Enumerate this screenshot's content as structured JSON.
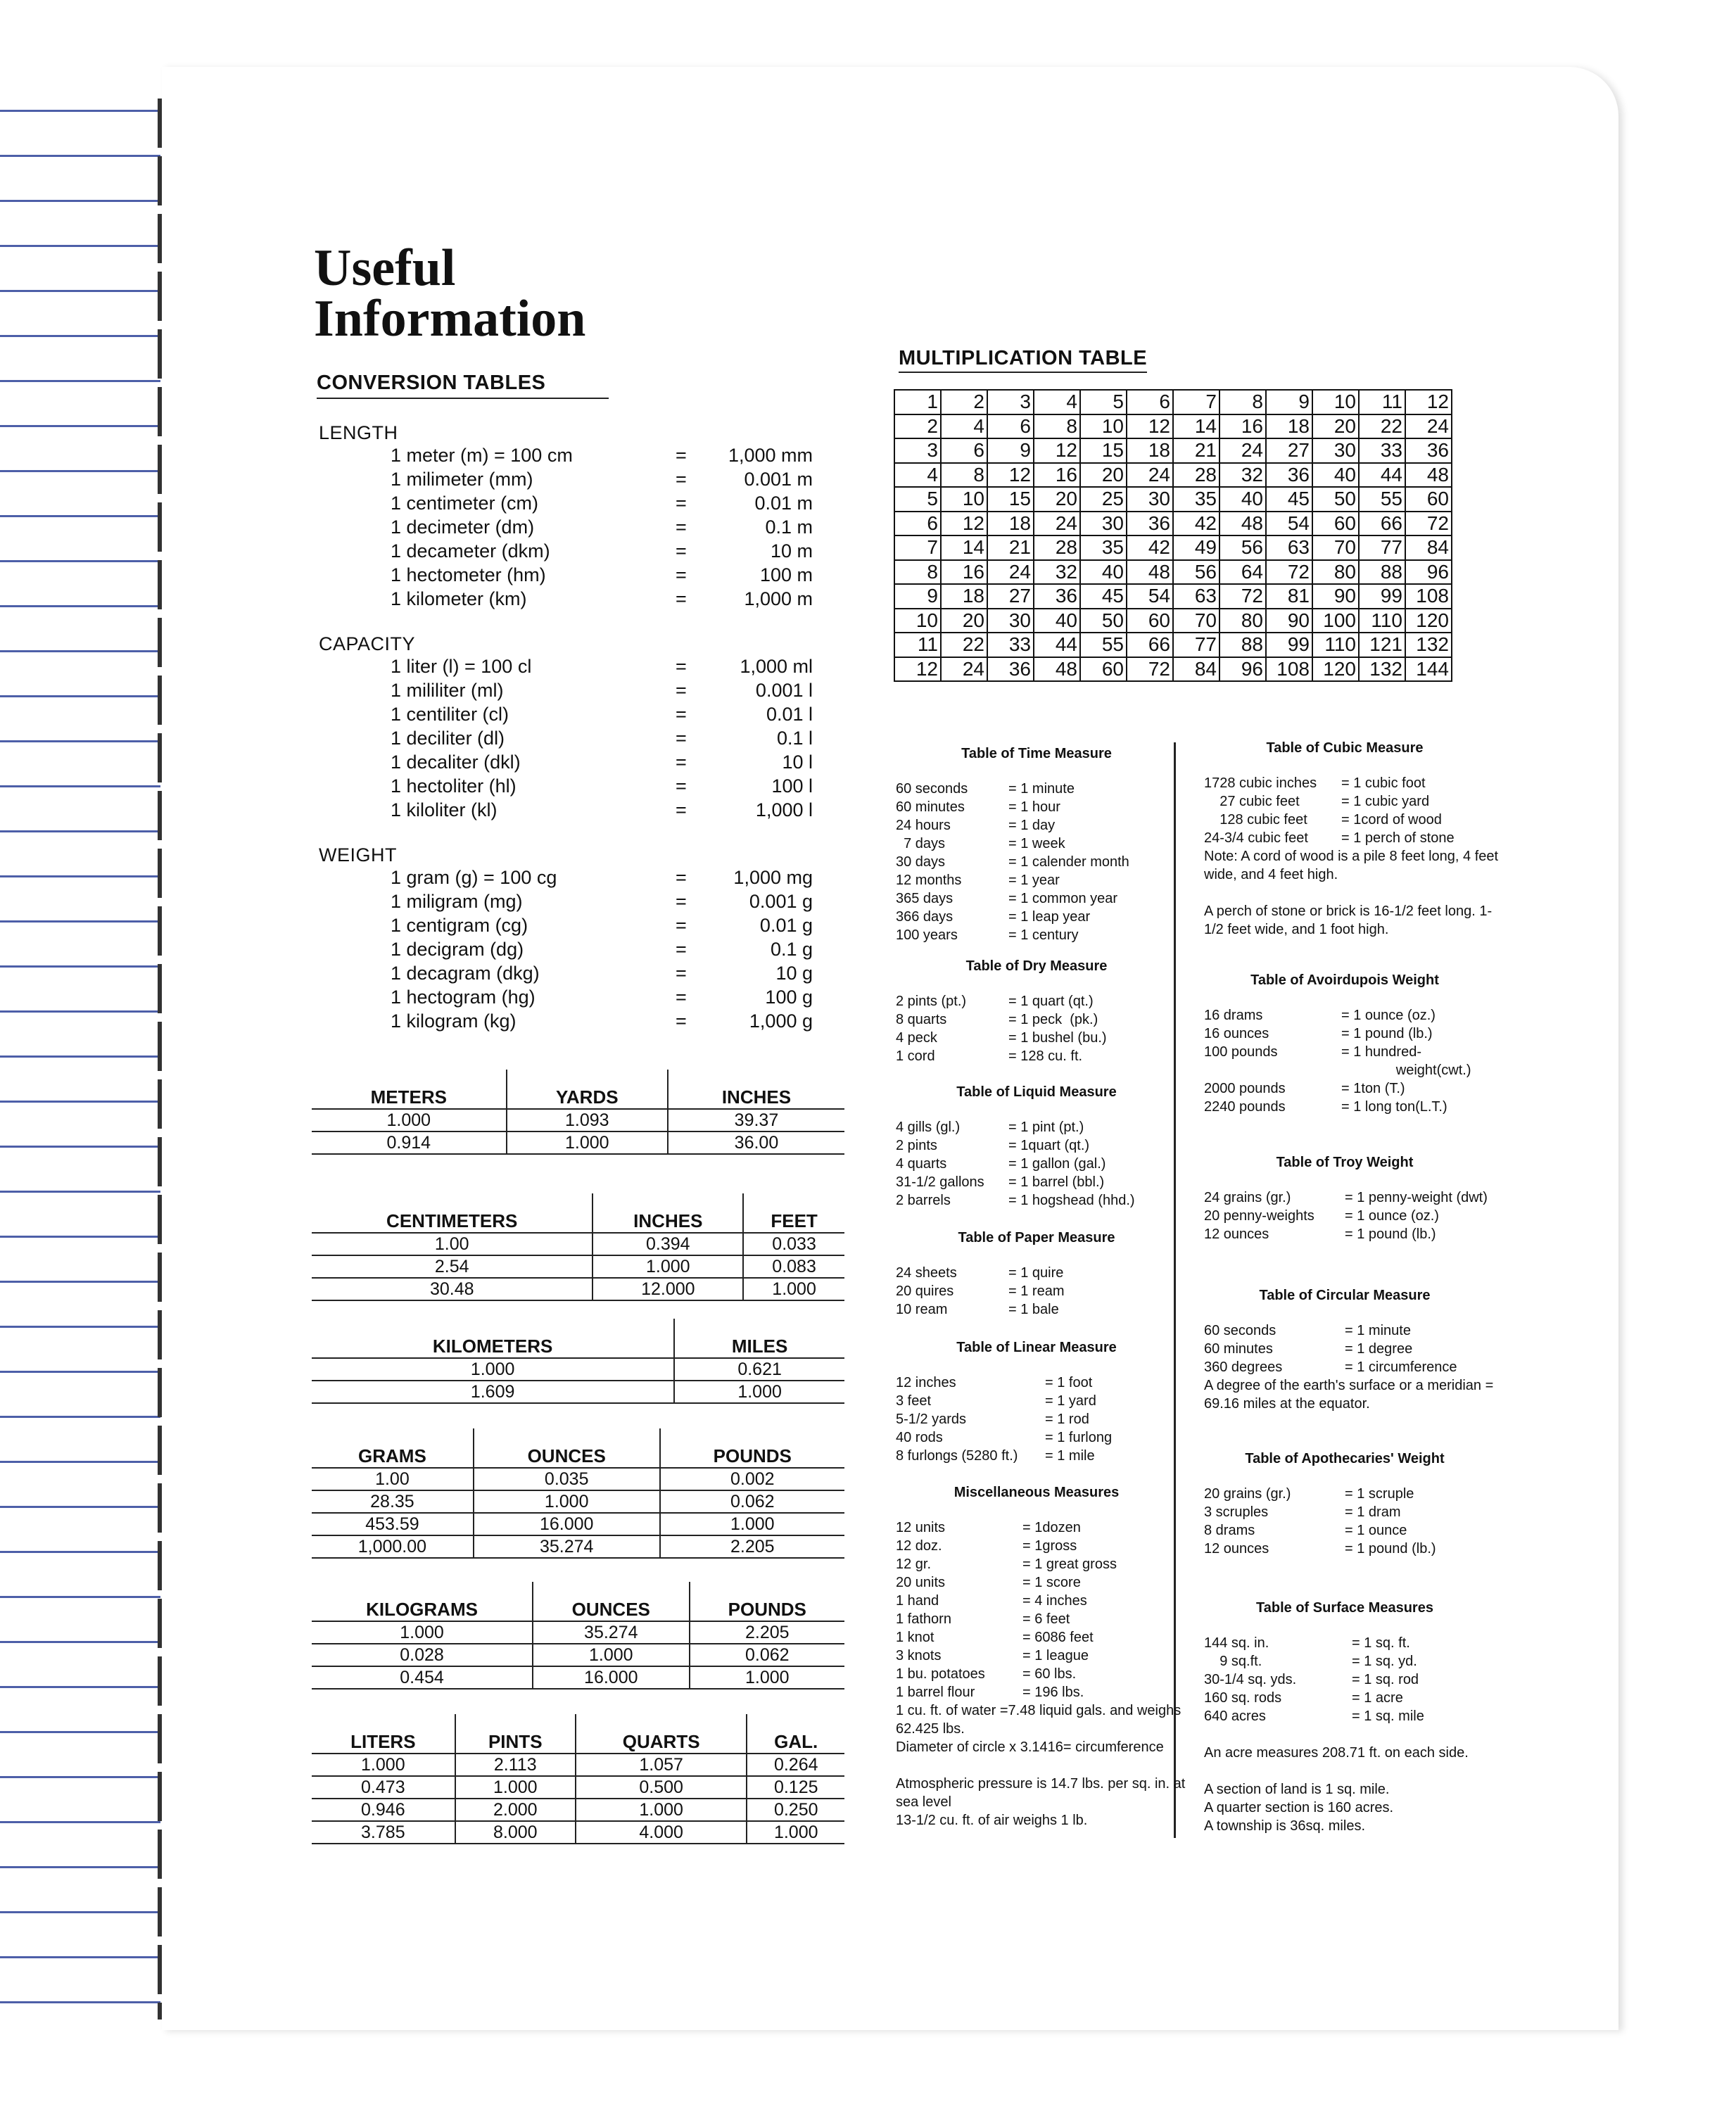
{
  "title": "Useful Information",
  "conversion_heading": "CONVERSION TABLES",
  "multiplication_heading": "MULTIPLICATION TABLE",
  "categories": [
    {
      "name": "LENGTH",
      "rows": [
        [
          "1 meter (m) = 100 cm",
          "=",
          "1,000 mm"
        ],
        [
          "1 milimeter (mm)",
          "=",
          "0.001 m"
        ],
        [
          "1 centimeter (cm)",
          "=",
          "0.01 m"
        ],
        [
          "1 decimeter (dm)",
          "=",
          "0.1 m"
        ],
        [
          "1 decameter (dkm)",
          "=",
          "10 m"
        ],
        [
          "1 hectometer (hm)",
          "=",
          "100 m"
        ],
        [
          "1 kilometer (km)",
          "=",
          "1,000 m"
        ]
      ]
    },
    {
      "name": "CAPACITY",
      "rows": [
        [
          "1 liter (l) = 100 cl",
          "=",
          "1,000 ml"
        ],
        [
          "1 mililiter (ml)",
          "=",
          "0.001 l"
        ],
        [
          "1 centiliter (cl)",
          "=",
          "0.01 l"
        ],
        [
          "1 deciliter (dl)",
          "=",
          "0.1 l"
        ],
        [
          "1 decaliter (dkl)",
          "=",
          "10 l"
        ],
        [
          "1 hectoliter (hl)",
          "=",
          "100 l"
        ],
        [
          "1 kiloliter (kl)",
          "=",
          "1,000 l"
        ]
      ]
    },
    {
      "name": "WEIGHT",
      "rows": [
        [
          "1 gram (g) = 100 cg",
          "=",
          "1,000 mg"
        ],
        [
          "1 miligram (mg)",
          "=",
          "0.001 g"
        ],
        [
          "1 centigram (cg)",
          "=",
          "0.01 g"
        ],
        [
          "1 decigram (dg)",
          "=",
          "0.1 g"
        ],
        [
          "1 decagram (dkg)",
          "=",
          "10 g"
        ],
        [
          "1 hectogram (hg)",
          "=",
          "100 g"
        ],
        [
          "1 kilogram (kg)",
          "=",
          "1,000 g"
        ]
      ]
    }
  ],
  "conv_tables": [
    {
      "headers": [
        "METERS",
        "YARDS",
        "INCHES"
      ],
      "rows": [
        [
          "1.000",
          "1.093",
          "39.37"
        ],
        [
          "0.914",
          "1.000",
          "36.00"
        ]
      ]
    },
    {
      "headers": [
        "CENTIMETERS",
        "INCHES",
        "FEET"
      ],
      "rows": [
        [
          "1.00",
          "0.394",
          "0.033"
        ],
        [
          "2.54",
          "1.000",
          "0.083"
        ],
        [
          "30.48",
          "12.000",
          "1.000"
        ]
      ]
    },
    {
      "headers": [
        "KILOMETERS",
        "MILES"
      ],
      "rows": [
        [
          "1.000",
          "0.621"
        ],
        [
          "1.609",
          "1.000"
        ]
      ]
    },
    {
      "headers": [
        "GRAMS",
        "OUNCES",
        "POUNDS"
      ],
      "rows": [
        [
          "1.00",
          "0.035",
          "0.002"
        ],
        [
          "28.35",
          "1.000",
          "0.062"
        ],
        [
          "453.59",
          "16.000",
          "1.000"
        ],
        [
          "1,000.00",
          "35.274",
          "2.205"
        ]
      ]
    },
    {
      "headers": [
        "KILOGRAMS",
        "OUNCES",
        "POUNDS"
      ],
      "rows": [
        [
          "1.000",
          "35.274",
          "2.205"
        ],
        [
          "0.028",
          "1.000",
          "0.062"
        ],
        [
          "0.454",
          "16.000",
          "1.000"
        ]
      ]
    },
    {
      "headers": [
        "LITERS",
        "PINTS",
        "QUARTS",
        "GAL."
      ],
      "rows": [
        [
          "1.000",
          "2.113",
          "1.057",
          "0.264"
        ],
        [
          "0.473",
          "1.000",
          "0.500",
          "0.125"
        ],
        [
          "0.946",
          "2.000",
          "1.000",
          "0.250"
        ],
        [
          "3.785",
          "8.000",
          "4.000",
          "1.000"
        ]
      ]
    }
  ],
  "multiplication": [
    [
      1,
      2,
      3,
      4,
      5,
      6,
      7,
      8,
      9,
      10,
      11,
      12
    ],
    [
      2,
      4,
      6,
      8,
      10,
      12,
      14,
      16,
      18,
      20,
      22,
      24
    ],
    [
      3,
      6,
      9,
      12,
      15,
      18,
      21,
      24,
      27,
      30,
      33,
      36
    ],
    [
      4,
      8,
      12,
      16,
      20,
      24,
      28,
      32,
      36,
      40,
      44,
      48
    ],
    [
      5,
      10,
      15,
      20,
      25,
      30,
      35,
      40,
      45,
      50,
      55,
      60
    ],
    [
      6,
      12,
      18,
      24,
      30,
      36,
      42,
      48,
      54,
      60,
      66,
      72
    ],
    [
      7,
      14,
      21,
      28,
      35,
      42,
      49,
      56,
      63,
      70,
      77,
      84
    ],
    [
      8,
      16,
      24,
      32,
      40,
      48,
      56,
      64,
      72,
      80,
      88,
      96
    ],
    [
      9,
      18,
      27,
      36,
      45,
      54,
      63,
      72,
      81,
      90,
      99,
      108
    ],
    [
      10,
      20,
      30,
      40,
      50,
      60,
      70,
      80,
      90,
      100,
      110,
      120
    ],
    [
      11,
      22,
      33,
      44,
      55,
      66,
      77,
      88,
      99,
      110,
      121,
      132
    ],
    [
      12,
      24,
      36,
      48,
      60,
      72,
      84,
      96,
      108,
      120,
      132,
      144
    ]
  ],
  "measures_left": [
    {
      "title": "Table of Time Measure",
      "rows": [
        [
          "60 seconds",
          "= 1 minute"
        ],
        [
          "60 minutes",
          "= 1 hour"
        ],
        [
          "24 hours",
          "= 1 day"
        ],
        [
          "  7 days",
          "= 1 week"
        ],
        [
          "30 days",
          "= 1 calender month"
        ],
        [
          "12 months",
          "= 1 year"
        ],
        [
          "365 days",
          "= 1 common year"
        ],
        [
          "366 days",
          "= 1 leap year"
        ],
        [
          "100 years",
          "= 1 century"
        ]
      ],
      "notes": []
    },
    {
      "title": "Table of Dry Measure",
      "rows": [
        [
          "2 pints (pt.)",
          "= 1 quart (qt.)"
        ],
        [
          "8 quarts",
          "= 1 peck  (pk.)"
        ],
        [
          "4 peck",
          "= 1 bushel (bu.)"
        ],
        [
          "1 cord",
          "= 128 cu. ft."
        ]
      ],
      "notes": []
    },
    {
      "title": "Table of Liquid Measure",
      "rows": [
        [
          "4 gills (gl.)",
          "= 1 pint (pt.)"
        ],
        [
          "2 pints",
          "= 1quart (qt.)"
        ],
        [
          "4 quarts",
          "= 1 gallon (gal.)"
        ],
        [
          "31-1/2 gallons",
          "= 1 barrel (bbl.)"
        ],
        [
          "2 barrels",
          "= 1 hogshead (hhd.)"
        ]
      ],
      "notes": []
    },
    {
      "title": "Table of Paper Measure",
      "rows": [
        [
          "24 sheets",
          "= 1 quire"
        ],
        [
          "20 quires",
          "= 1 ream"
        ],
        [
          "10 ream",
          "= 1 bale"
        ]
      ],
      "notes": []
    },
    {
      "title": "Table of Linear Measure",
      "rows": [
        [
          "12 inches",
          "= 1 foot"
        ],
        [
          "3 feet",
          "= 1 yard"
        ],
        [
          "5-1/2 yards",
          "= 1 rod"
        ],
        [
          "40 rods",
          "= 1 furlong"
        ],
        [
          "8 furlongs (5280 ft.)",
          "= 1 mile"
        ]
      ],
      "notes": []
    },
    {
      "title": "Miscellaneous Measures",
      "rows": [
        [
          "12 units",
          "= 1dozen"
        ],
        [
          "12 doz.",
          "= 1gross"
        ],
        [
          "12 gr.",
          "= 1 great gross"
        ],
        [
          "20 units",
          "= 1 score"
        ],
        [
          "1 hand",
          "= 4 inches"
        ],
        [
          "1 fathorn",
          "= 6 feet"
        ],
        [
          "1 knot",
          "= 6086 feet"
        ],
        [
          "3 knots",
          "= 1 league"
        ],
        [
          "1 bu. potatoes",
          "= 60 lbs."
        ],
        [
          "1 barrel flour",
          "= 196 lbs."
        ]
      ],
      "notes": [
        "1 cu. ft. of water =7.48 liquid gals. and weighs 62.425 lbs.",
        "Diameter of circle x 3.1416= circumference",
        "Atmospheric pressure is 14.7 lbs. per sq. in. at sea level",
        "13-1/2 cu. ft. of air weighs 1 lb."
      ]
    }
  ],
  "measures_right": [
    {
      "title": "Table of Cubic Measure",
      "rows": [
        [
          "1728 cubic inches",
          "= 1 cubic foot"
        ],
        [
          "    27 cubic feet",
          "= 1 cubic yard"
        ],
        [
          "    128 cubic feet",
          "= 1cord of wood"
        ],
        [
          "24-3/4 cubic feet",
          "= 1 perch of stone"
        ]
      ],
      "notes": [
        "Note: A cord of wood is a pile 8 feet long, 4 feet wide, and 4 feet high.",
        "A perch of stone or brick is 16-1/2 feet long. 1-1/2 feet wide, and 1 foot high."
      ]
    },
    {
      "title": "Table of Avoirdupois Weight",
      "rows": [
        [
          "16 drams",
          "= 1 ounce (oz.)"
        ],
        [
          "16 ounces",
          "= 1 pound (lb.)"
        ],
        [
          "100 pounds",
          "= 1 hundred-\n              weight(cwt.)"
        ],
        [
          "2000 pounds",
          "= 1ton (T.)"
        ],
        [
          "2240 pounds",
          "= 1 long ton(L.T.)"
        ]
      ],
      "notes": []
    },
    {
      "title": "Table of Troy Weight",
      "rows": [
        [
          "24 grains (gr.)",
          "= 1 penny-weight (dwt)"
        ],
        [
          "20 penny-weights",
          "= 1 ounce (oz.)"
        ],
        [
          "12 ounces",
          "= 1 pound (lb.)"
        ]
      ],
      "notes": []
    },
    {
      "title": "Table of Circular Measure",
      "rows": [
        [
          "60 seconds",
          "= 1 minute"
        ],
        [
          "60 minutes",
          "= 1 degree"
        ],
        [
          "360 degrees",
          "= 1 circumference"
        ]
      ],
      "notes": [
        "A degree of the earth's surface or a meridian = 69.16 miles at the equator."
      ]
    },
    {
      "title": "Table of Apothecaries' Weight",
      "rows": [
        [
          "20 grains (gr.)",
          "= 1 scruple"
        ],
        [
          "3 scruples",
          "= 1 dram"
        ],
        [
          "8 drams",
          "= 1 ounce"
        ],
        [
          "12 ounces",
          "= 1 pound (lb.)"
        ]
      ],
      "notes": []
    },
    {
      "title": "Table of Surface Measures",
      "rows": [
        [
          "144 sq. in.",
          "= 1 sq. ft."
        ],
        [
          "    9 sq.ft.",
          "= 1 sq. yd."
        ],
        [
          "30-1/4 sq. yds.",
          "= 1 sq. rod"
        ],
        [
          "160 sq. rods",
          "= 1 acre"
        ],
        [
          "640 acres",
          "= 1 sq. mile"
        ]
      ],
      "notes": [
        "",
        "An acre measures 208.71 ft. on each side.",
        "A section of land is 1 sq. mile.",
        "A quarter section is 160 acres.",
        "A township is 36sq. miles."
      ]
    }
  ]
}
